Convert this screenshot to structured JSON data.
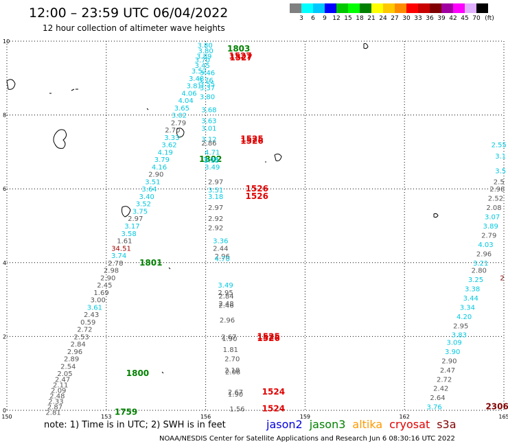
{
  "header": {
    "title": "12:00 – 23:59 UTC 06/04/2022",
    "subtitle": "12 hour collection of altimeter wave heights"
  },
  "legend": {
    "unit": "(ft)",
    "labels": [
      "3",
      "6",
      "9",
      "12",
      "15",
      "18",
      "21",
      "24",
      "27",
      "30",
      "33",
      "36",
      "39",
      "42",
      "45",
      "70"
    ],
    "colors": [
      "#808080",
      "#00ffff",
      "#00c8ff",
      "#0000ff",
      "#00c800",
      "#00ff00",
      "#008000",
      "#ffff00",
      "#ffc800",
      "#ff8c00",
      "#ff0000",
      "#c80000",
      "#800000",
      "#a000a0",
      "#ff00ff",
      "#e0b0ff",
      "#000000"
    ]
  },
  "axes": {
    "x_ticks": [
      "150",
      "153",
      "156",
      "159",
      "162",
      "165"
    ],
    "y_ticks": [
      "0",
      "2",
      "4",
      "6",
      "8",
      "10"
    ]
  },
  "colors": {
    "gray": "#555555",
    "cyan": "#00c8e0",
    "green": "#008000",
    "red": "#e00000",
    "darkred": "#a00000",
    "maroon": "#800000"
  },
  "wave_labels": [
    {
      "t": "3.80",
      "lon": 155.98,
      "lat": 9.9,
      "c": "cyan"
    },
    {
      "t": "1803",
      "lon": 156.65,
      "lat": 9.8,
      "c": "green"
    },
    {
      "t": "3.80",
      "lon": 156.0,
      "lat": 9.75,
      "c": "cyan"
    },
    {
      "t": "3.89",
      "lon": 155.95,
      "lat": 9.6,
      "c": "cyan"
    },
    {
      "t": "1527",
      "lon": 156.7,
      "lat": 9.6,
      "c": "red"
    },
    {
      "t": "1527",
      "lon": 156.72,
      "lat": 9.55,
      "c": "red"
    },
    {
      "t": "3.70",
      "lon": 155.9,
      "lat": 9.5,
      "c": "cyan"
    },
    {
      "t": "3.45",
      "lon": 155.9,
      "lat": 9.35,
      "c": "cyan"
    },
    {
      "t": "3.52",
      "lon": 155.8,
      "lat": 9.2,
      "c": "cyan"
    },
    {
      "t": "3.46",
      "lon": 156.05,
      "lat": 9.15,
      "c": "cyan"
    },
    {
      "t": "3.48",
      "lon": 155.72,
      "lat": 9.0,
      "c": "cyan"
    },
    {
      "t": "3.76",
      "lon": 156.0,
      "lat": 8.95,
      "c": "cyan"
    },
    {
      "t": "3.55",
      "lon": 156.05,
      "lat": 8.85,
      "c": "cyan"
    },
    {
      "t": "3.81",
      "lon": 155.65,
      "lat": 8.8,
      "c": "cyan"
    },
    {
      "t": "3.37",
      "lon": 156.05,
      "lat": 8.75,
      "c": "cyan"
    },
    {
      "t": "4.06",
      "lon": 155.5,
      "lat": 8.6,
      "c": "cyan"
    },
    {
      "t": "3.80",
      "lon": 156.05,
      "lat": 8.5,
      "c": "cyan"
    },
    {
      "t": "4.04",
      "lon": 155.4,
      "lat": 8.4,
      "c": "cyan"
    },
    {
      "t": "3.65",
      "lon": 155.28,
      "lat": 8.2,
      "c": "cyan"
    },
    {
      "t": "3.68",
      "lon": 156.1,
      "lat": 8.15,
      "c": "cyan"
    },
    {
      "t": "3.02",
      "lon": 155.2,
      "lat": 8.0,
      "c": "cyan"
    },
    {
      "t": "2.79",
      "lon": 155.18,
      "lat": 7.8,
      "c": "gray"
    },
    {
      "t": "3.63",
      "lon": 156.1,
      "lat": 7.85,
      "c": "cyan"
    },
    {
      "t": "3.01",
      "lon": 156.1,
      "lat": 7.65,
      "c": "cyan"
    },
    {
      "t": "2.70",
      "lon": 155.0,
      "lat": 7.6,
      "c": "gray"
    },
    {
      "t": "3.33",
      "lon": 154.98,
      "lat": 7.4,
      "c": "cyan"
    },
    {
      "t": "3.12",
      "lon": 156.1,
      "lat": 7.35,
      "c": "cyan"
    },
    {
      "t": "1525",
      "lon": 157.05,
      "lat": 7.35,
      "c": "red"
    },
    {
      "t": "1526",
      "lon": 157.05,
      "lat": 7.3,
      "c": "red"
    },
    {
      "t": "2.86",
      "lon": 156.1,
      "lat": 7.25,
      "c": "gray"
    },
    {
      "t": "3.62",
      "lon": 154.9,
      "lat": 7.2,
      "c": "cyan"
    },
    {
      "t": "4.71",
      "lon": 156.2,
      "lat": 7.0,
      "c": "cyan"
    },
    {
      "t": "4.19",
      "lon": 154.78,
      "lat": 7.0,
      "c": "cyan"
    },
    {
      "t": "1802",
      "lon": 155.8,
      "lat": 6.8,
      "c": "green"
    },
    {
      "t": "3.79",
      "lon": 154.68,
      "lat": 6.8,
      "c": "cyan"
    },
    {
      "t": "3.40",
      "lon": 156.15,
      "lat": 6.8,
      "c": "cyan"
    },
    {
      "t": "3.15",
      "lon": 156.18,
      "lat": 6.78,
      "c": "cyan"
    },
    {
      "t": "4.16",
      "lon": 154.6,
      "lat": 6.6,
      "c": "cyan"
    },
    {
      "t": "3.49",
      "lon": 156.2,
      "lat": 6.6,
      "c": "cyan"
    },
    {
      "t": "2.90",
      "lon": 154.5,
      "lat": 6.4,
      "c": "gray"
    },
    {
      "t": "3.51",
      "lon": 154.4,
      "lat": 6.2,
      "c": "cyan"
    },
    {
      "t": "2.97",
      "lon": 156.3,
      "lat": 6.2,
      "c": "gray"
    },
    {
      "t": "3.64",
      "lon": 154.3,
      "lat": 6.0,
      "c": "cyan"
    },
    {
      "t": "3.51",
      "lon": 156.3,
      "lat": 5.98,
      "c": "cyan"
    },
    {
      "t": "1526",
      "lon": 157.2,
      "lat": 6.0,
      "c": "red"
    },
    {
      "t": "1526",
      "lon": 157.2,
      "lat": 5.8,
      "c": "red"
    },
    {
      "t": "3.40",
      "lon": 154.22,
      "lat": 5.8,
      "c": "cyan"
    },
    {
      "t": "3.18",
      "lon": 156.3,
      "lat": 5.8,
      "c": "cyan"
    },
    {
      "t": "3.52",
      "lon": 154.12,
      "lat": 5.6,
      "c": "cyan"
    },
    {
      "t": "2.97",
      "lon": 156.3,
      "lat": 5.5,
      "c": "gray"
    },
    {
      "t": "3.75",
      "lon": 154.02,
      "lat": 5.4,
      "c": "cyan"
    },
    {
      "t": "2.97",
      "lon": 153.88,
      "lat": 5.2,
      "c": "gray"
    },
    {
      "t": "2.92",
      "lon": 156.3,
      "lat": 5.2,
      "c": "gray"
    },
    {
      "t": "3.17",
      "lon": 153.78,
      "lat": 5.0,
      "c": "cyan"
    },
    {
      "t": "2.92",
      "lon": 156.3,
      "lat": 4.95,
      "c": "gray"
    },
    {
      "t": "3.58",
      "lon": 153.68,
      "lat": 4.8,
      "c": "cyan"
    },
    {
      "t": "1.61",
      "lon": 153.55,
      "lat": 4.6,
      "c": "gray"
    },
    {
      "t": "3.36",
      "lon": 156.45,
      "lat": 4.6,
      "c": "cyan"
    },
    {
      "t": "34.51",
      "lon": 153.45,
      "lat": 4.4,
      "c": "darkred"
    },
    {
      "t": "2.44",
      "lon": 156.45,
      "lat": 4.4,
      "c": "gray"
    },
    {
      "t": "3.74",
      "lon": 153.38,
      "lat": 4.2,
      "c": "cyan"
    },
    {
      "t": "2.96",
      "lon": 156.5,
      "lat": 4.18,
      "c": "gray"
    },
    {
      "t": "4.70",
      "lon": 156.5,
      "lat": 4.12,
      "c": "cyan"
    },
    {
      "t": "2.78",
      "lon": 153.28,
      "lat": 4.0,
      "c": "gray"
    },
    {
      "t": "1801",
      "lon": 154.0,
      "lat": 4.0,
      "c": "green"
    },
    {
      "t": "2.98",
      "lon": 153.15,
      "lat": 3.8,
      "c": "gray"
    },
    {
      "t": "2.90",
      "lon": 153.05,
      "lat": 3.6,
      "c": "gray"
    },
    {
      "t": "2.45",
      "lon": 152.95,
      "lat": 3.4,
      "c": "gray"
    },
    {
      "t": "3.49",
      "lon": 156.6,
      "lat": 3.4,
      "c": "cyan"
    },
    {
      "t": "1.69",
      "lon": 152.85,
      "lat": 3.2,
      "c": "gray"
    },
    {
      "t": "2.95",
      "lon": 156.6,
      "lat": 3.2,
      "c": "gray"
    },
    {
      "t": "2.84",
      "lon": 156.62,
      "lat": 3.1,
      "c": "gray"
    },
    {
      "t": "3.00",
      "lon": 152.75,
      "lat": 3.0,
      "c": "gray"
    },
    {
      "t": "2.48",
      "lon": 156.62,
      "lat": 2.9,
      "c": "gray"
    },
    {
      "t": "3.61",
      "lon": 152.65,
      "lat": 2.8,
      "c": "cyan"
    },
    {
      "t": "2.46",
      "lon": 156.62,
      "lat": 2.85,
      "c": "gray"
    },
    {
      "t": "2.43",
      "lon": 152.55,
      "lat": 2.6,
      "c": "gray"
    },
    {
      "t": "2.96",
      "lon": 156.65,
      "lat": 2.45,
      "c": "gray"
    },
    {
      "t": "0.59",
      "lon": 152.45,
      "lat": 2.4,
      "c": "gray"
    },
    {
      "t": "2.72",
      "lon": 152.35,
      "lat": 2.2,
      "c": "gray"
    },
    {
      "t": "2.53",
      "lon": 152.25,
      "lat": 2.0,
      "c": "gray"
    },
    {
      "t": "2.67",
      "lon": 156.7,
      "lat": 2.0,
      "c": "gray"
    },
    {
      "t": "1.90",
      "lon": 156.72,
      "lat": 1.95,
      "c": "gray"
    },
    {
      "t": "1525",
      "lon": 157.55,
      "lat": 2.0,
      "c": "red"
    },
    {
      "t": "1526",
      "lon": 157.55,
      "lat": 1.95,
      "c": "red"
    },
    {
      "t": "2.84",
      "lon": 152.15,
      "lat": 1.8,
      "c": "gray"
    },
    {
      "t": "1.81",
      "lon": 156.75,
      "lat": 1.65,
      "c": "gray"
    },
    {
      "t": "2.96",
      "lon": 152.05,
      "lat": 1.6,
      "c": "gray"
    },
    {
      "t": "2.89",
      "lon": 151.95,
      "lat": 1.4,
      "c": "gray"
    },
    {
      "t": "2.70",
      "lon": 156.8,
      "lat": 1.4,
      "c": "gray"
    },
    {
      "t": "2.54",
      "lon": 151.85,
      "lat": 1.2,
      "c": "gray"
    },
    {
      "t": "2.18",
      "lon": 156.8,
      "lat": 1.1,
      "c": "gray"
    },
    {
      "t": "2.08",
      "lon": 156.82,
      "lat": 1.05,
      "c": "gray"
    },
    {
      "t": "2.05",
      "lon": 151.75,
      "lat": 1.0,
      "c": "gray"
    },
    {
      "t": "1800",
      "lon": 153.6,
      "lat": 1.0,
      "c": "green"
    },
    {
      "t": "2.47",
      "lon": 151.68,
      "lat": 0.85,
      "c": "gray"
    },
    {
      "t": "2.11",
      "lon": 151.62,
      "lat": 0.7,
      "c": "gray"
    },
    {
      "t": "2.09",
      "lon": 151.56,
      "lat": 0.55,
      "c": "gray"
    },
    {
      "t": "2.67",
      "lon": 156.9,
      "lat": 0.5,
      "c": "gray"
    },
    {
      "t": "1.90",
      "lon": 156.9,
      "lat": 0.45,
      "c": "gray"
    },
    {
      "t": "1524",
      "lon": 157.7,
      "lat": 0.5,
      "c": "red"
    },
    {
      "t": "2.48",
      "lon": 151.52,
      "lat": 0.4,
      "c": "gray"
    },
    {
      "t": "2.33",
      "lon": 151.48,
      "lat": 0.25,
      "c": "gray"
    },
    {
      "t": "2.87",
      "lon": 151.45,
      "lat": 0.1,
      "c": "gray"
    },
    {
      "t": "1.56",
      "lon": 156.95,
      "lat": 0.05,
      "c": "gray"
    },
    {
      "t": "1524",
      "lon": 157.7,
      "lat": 0.05,
      "c": "red"
    },
    {
      "t": "2.81",
      "lon": 151.4,
      "lat": -0.05,
      "c": "gray"
    },
    {
      "t": "1759",
      "lon": 153.25,
      "lat": -0.05,
      "c": "green"
    },
    {
      "t": "2.55",
      "lon": 164.85,
      "lat": 7.2,
      "c": "cyan"
    },
    {
      "t": "3.1",
      "lon": 164.9,
      "lat": 6.9,
      "c": "cyan"
    },
    {
      "t": "3.5",
      "lon": 164.9,
      "lat": 6.5,
      "c": "cyan"
    },
    {
      "t": "2.5",
      "lon": 164.85,
      "lat": 6.2,
      "c": "gray"
    },
    {
      "t": "2.98",
      "lon": 164.8,
      "lat": 6.0,
      "c": "gray"
    },
    {
      "t": "2.52",
      "lon": 164.75,
      "lat": 5.75,
      "c": "gray"
    },
    {
      "t": "2.08",
      "lon": 164.7,
      "lat": 5.5,
      "c": "gray"
    },
    {
      "t": "3.07",
      "lon": 164.65,
      "lat": 5.25,
      "c": "cyan"
    },
    {
      "t": "3.89",
      "lon": 164.6,
      "lat": 5.0,
      "c": "cyan"
    },
    {
      "t": "2.79",
      "lon": 164.55,
      "lat": 4.75,
      "c": "gray"
    },
    {
      "t": "4.03",
      "lon": 164.45,
      "lat": 4.5,
      "c": "cyan"
    },
    {
      "t": "2.96",
      "lon": 164.4,
      "lat": 4.25,
      "c": "gray"
    },
    {
      "t": "3.21",
      "lon": 164.3,
      "lat": 4.0,
      "c": "cyan"
    },
    {
      "t": "2.80",
      "lon": 164.25,
      "lat": 3.8,
      "c": "gray"
    },
    {
      "t": "2",
      "lon": 164.95,
      "lat": 3.6,
      "c": "maroon"
    },
    {
      "t": "3.25",
      "lon": 164.15,
      "lat": 3.55,
      "c": "cyan"
    },
    {
      "t": "3.38",
      "lon": 164.05,
      "lat": 3.3,
      "c": "cyan"
    },
    {
      "t": "3.44",
      "lon": 164.0,
      "lat": 3.05,
      "c": "cyan"
    },
    {
      "t": "3.34",
      "lon": 163.9,
      "lat": 2.8,
      "c": "cyan"
    },
    {
      "t": "4.20",
      "lon": 163.8,
      "lat": 2.55,
      "c": "cyan"
    },
    {
      "t": "2.95",
      "lon": 163.7,
      "lat": 2.3,
      "c": "gray"
    },
    {
      "t": "3.83",
      "lon": 163.65,
      "lat": 2.05,
      "c": "cyan"
    },
    {
      "t": "3.09",
      "lon": 163.5,
      "lat": 1.85,
      "c": "cyan"
    },
    {
      "t": "3.90",
      "lon": 163.45,
      "lat": 1.6,
      "c": "cyan"
    },
    {
      "t": "2.90",
      "lon": 163.35,
      "lat": 1.35,
      "c": "gray"
    },
    {
      "t": "2.47",
      "lon": 163.3,
      "lat": 1.1,
      "c": "gray"
    },
    {
      "t": "2.72",
      "lon": 163.2,
      "lat": 0.85,
      "c": "gray"
    },
    {
      "t": "2.42",
      "lon": 163.1,
      "lat": 0.6,
      "c": "gray"
    },
    {
      "t": "2.64",
      "lon": 163.0,
      "lat": 0.35,
      "c": "gray"
    },
    {
      "t": "3.76",
      "lon": 162.9,
      "lat": 0.1,
      "c": "cyan"
    },
    {
      "t": "2306",
      "lon": 164.45,
      "lat": 0.1,
      "c": "maroon"
    }
  ],
  "note": "note:  1) Time is in UTC;  2) SWH is in feet",
  "satellites": [
    {
      "name": "jason2",
      "color": "#0000e0"
    },
    {
      "name": "jason3",
      "color": "#008000"
    },
    {
      "name": "altika",
      "color": "#ff9900"
    },
    {
      "name": "cryosat",
      "color": "#e00000"
    },
    {
      "name": "s3a",
      "color": "#800000"
    }
  ],
  "footer": "NOAA/NESDIS Center for Satellite Applications and Research    Jun  6 08:30:16 UTC 2022"
}
